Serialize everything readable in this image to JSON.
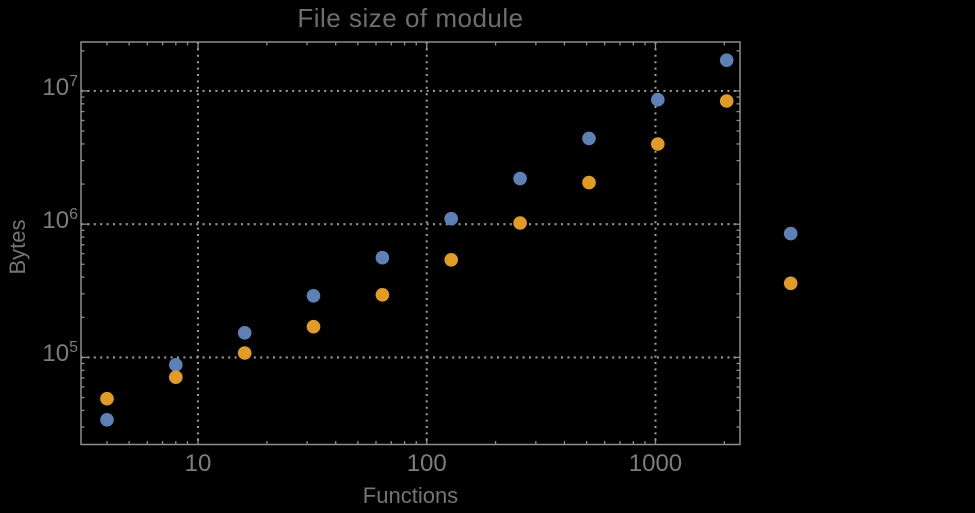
{
  "chart_data": {
    "type": "scatter",
    "scale": "log-log",
    "title": "File size of module",
    "xlabel": "Functions",
    "ylabel": "Bytes",
    "xlim": [
      3.08,
      2342
    ],
    "ylim": [
      22200,
      23300000
    ],
    "grid": "dotted lines at decade ticks, both axes",
    "legend": "none",
    "frame": "full box frame with inward ticks on all four sides",
    "x_ticks": [
      {
        "value": 10,
        "label": "10"
      },
      {
        "value": 100,
        "label": "100"
      },
      {
        "value": 1000,
        "label": "1000"
      }
    ],
    "y_ticks": [
      {
        "value": 100000,
        "base": "10",
        "exponent": "5"
      },
      {
        "value": 1000000,
        "base": "10",
        "exponent": "6"
      },
      {
        "value": 10000000,
        "base": "10",
        "exponent": "7"
      }
    ],
    "x": [
      4,
      8,
      16,
      32,
      64,
      128,
      256,
      512,
      1024,
      2048,
      3900
    ],
    "series": [
      {
        "name": "series-1-blue",
        "color": "#5E81B5",
        "values": [
          34000,
          88000,
          153000,
          290000,
          560000,
          1100000,
          2200000,
          4400000,
          8600000,
          17000000,
          850000
        ]
      },
      {
        "name": "series-2-orange",
        "color": "#E09C24",
        "values": [
          49000,
          71000,
          108000,
          170000,
          295000,
          540000,
          1020000,
          2050000,
          4000000,
          8400000,
          360000
        ]
      }
    ],
    "note": "last data points of both series are drawn outside the right edge of the plot frame"
  },
  "colors": {
    "background": "#000000",
    "frame": "#8e8e8e",
    "gridline": "#9a9a9a",
    "tick_label": "#7d7d7d",
    "title": "#6e6e6e",
    "axis_label": "#757575"
  }
}
